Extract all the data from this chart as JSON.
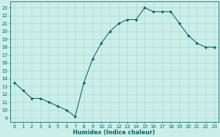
{
  "x": [
    0,
    1,
    2,
    3,
    4,
    5,
    6,
    7,
    8,
    9,
    10,
    11,
    12,
    13,
    14,
    15,
    16,
    17,
    18,
    19,
    20,
    21,
    22,
    23
  ],
  "y": [
    13.5,
    12.5,
    11.5,
    11.5,
    11.0,
    10.5,
    10.0,
    9.2,
    13.5,
    16.5,
    18.5,
    20.0,
    21.0,
    21.5,
    21.5,
    23.0,
    22.5,
    22.5,
    22.5,
    21.0,
    19.5,
    18.5,
    18.0,
    18.0
  ],
  "line_color": "#006666",
  "marker": "D",
  "marker_size": 2.0,
  "bg_color": "#cceee8",
  "grid_color": "#a8d8d0",
  "xlabel": "Humidex (Indice chaleur)",
  "xlim": [
    -0.5,
    23.5
  ],
  "ylim": [
    8.5,
    23.8
  ],
  "yticks": [
    9,
    10,
    11,
    12,
    13,
    14,
    15,
    16,
    17,
    18,
    19,
    20,
    21,
    22,
    23
  ],
  "xticks": [
    0,
    1,
    2,
    3,
    4,
    5,
    6,
    7,
    8,
    9,
    10,
    11,
    12,
    13,
    14,
    15,
    16,
    17,
    18,
    19,
    20,
    21,
    22,
    23
  ],
  "tick_color": "#006666",
  "label_color": "#006666",
  "axis_color": "#006666",
  "tick_fontsize": 5.0,
  "xlabel_fontsize": 6.0
}
